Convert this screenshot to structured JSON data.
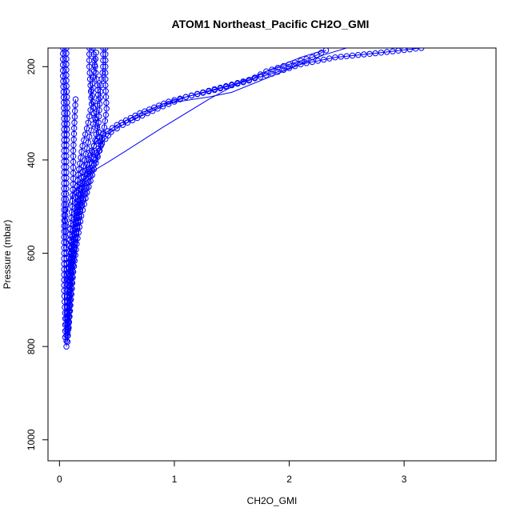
{
  "chart_data": {
    "type": "scatter",
    "title": "ATOM1 Northeast_Pacific CH2O_GMI",
    "xlabel": "CH2O_GMI",
    "ylabel": "Pressure (mbar)",
    "xlim": [
      -0.1,
      3.8
    ],
    "ylim": [
      1045,
      160
    ],
    "y_reversed": true,
    "x_ticks": [
      0,
      1,
      2,
      3
    ],
    "x_tick_labels": [
      "0",
      "1",
      "2",
      "3"
    ],
    "y_ticks": [
      200,
      400,
      600,
      800,
      1000
    ],
    "y_tick_labels": [
      "200",
      "400",
      "600",
      "800",
      "1000"
    ],
    "grid": false,
    "legend": "none",
    "color": "#0000ff",
    "series": [
      {
        "style": "line-markers",
        "points": [
          [
            0.03,
            160
          ],
          [
            0.03,
            220
          ],
          [
            0.04,
            300
          ],
          [
            0.04,
            380
          ],
          [
            0.04,
            450
          ],
          [
            0.04,
            530
          ],
          [
            0.04,
            600
          ],
          [
            0.04,
            680
          ],
          [
            0.05,
            740
          ],
          [
            0.05,
            780
          ]
        ]
      },
      {
        "style": "line-markers",
        "points": [
          [
            0.06,
            160
          ],
          [
            0.06,
            230
          ],
          [
            0.07,
            300
          ],
          [
            0.06,
            380
          ],
          [
            0.06,
            450
          ],
          [
            0.05,
            530
          ],
          [
            0.06,
            600
          ],
          [
            0.07,
            680
          ],
          [
            0.07,
            740
          ],
          [
            0.07,
            790
          ]
        ]
      },
      {
        "style": "line-markers",
        "points": [
          [
            0.14,
            270
          ],
          [
            0.13,
            320
          ],
          [
            0.12,
            380
          ],
          [
            0.12,
            440
          ],
          [
            0.11,
            500
          ],
          [
            0.09,
            560
          ],
          [
            0.08,
            620
          ],
          [
            0.07,
            680
          ],
          [
            0.06,
            740
          ],
          [
            0.06,
            800
          ]
        ]
      },
      {
        "style": "line-markers",
        "points": [
          [
            0.26,
            160
          ],
          [
            0.26,
            200
          ],
          [
            0.27,
            240
          ],
          [
            0.28,
            280
          ],
          [
            0.25,
            320
          ],
          [
            0.2,
            370
          ],
          [
            0.17,
            420
          ],
          [
            0.14,
            480
          ],
          [
            0.12,
            540
          ],
          [
            0.1,
            600
          ],
          [
            0.09,
            660
          ],
          [
            0.08,
            720
          ],
          [
            0.07,
            770
          ]
        ]
      },
      {
        "style": "line-markers",
        "points": [
          [
            0.29,
            160
          ],
          [
            0.31,
            200
          ],
          [
            0.33,
            240
          ],
          [
            0.34,
            270
          ],
          [
            0.31,
            310
          ],
          [
            0.26,
            350
          ],
          [
            0.22,
            400
          ],
          [
            0.18,
            450
          ],
          [
            0.15,
            510
          ],
          [
            0.12,
            570
          ],
          [
            0.1,
            630
          ],
          [
            0.09,
            690
          ],
          [
            0.08,
            750
          ],
          [
            0.07,
            790
          ]
        ]
      },
      {
        "style": "line-markers",
        "points": [
          [
            0.38,
            160
          ],
          [
            0.38,
            200
          ],
          [
            0.36,
            240
          ],
          [
            0.35,
            280
          ],
          [
            0.34,
            320
          ],
          [
            0.3,
            370
          ],
          [
            0.25,
            420
          ],
          [
            0.2,
            470
          ],
          [
            0.16,
            530
          ],
          [
            0.13,
            590
          ],
          [
            0.11,
            650
          ],
          [
            0.09,
            710
          ],
          [
            0.08,
            760
          ]
        ]
      },
      {
        "style": "line-markers",
        "points": [
          [
            0.4,
            160
          ],
          [
            0.4,
            200
          ],
          [
            0.4,
            240
          ],
          [
            0.41,
            290
          ],
          [
            0.39,
            330
          ],
          [
            0.35,
            380
          ],
          [
            0.3,
            420
          ],
          [
            0.24,
            470
          ],
          [
            0.19,
            520
          ],
          [
            0.15,
            580
          ],
          [
            0.12,
            640
          ],
          [
            0.1,
            700
          ],
          [
            0.08,
            760
          ]
        ]
      },
      {
        "style": "line-markers",
        "points": [
          [
            0.32,
            170
          ],
          [
            0.3,
            210
          ],
          [
            0.28,
            250
          ],
          [
            0.3,
            300
          ],
          [
            0.34,
            340
          ],
          [
            0.36,
            370
          ],
          [
            0.3,
            410
          ],
          [
            0.24,
            460
          ],
          [
            0.18,
            510
          ],
          [
            0.14,
            570
          ],
          [
            0.11,
            630
          ],
          [
            0.09,
            690
          ]
        ]
      },
      {
        "style": "line-markers",
        "points": [
          [
            3.15,
            160
          ],
          [
            2.8,
            170
          ],
          [
            2.4,
            180
          ],
          [
            2.1,
            195
          ],
          [
            1.85,
            215
          ],
          [
            1.55,
            235
          ],
          [
            1.25,
            255
          ],
          [
            0.95,
            275
          ],
          [
            0.7,
            300
          ],
          [
            0.5,
            325
          ],
          [
            0.38,
            345
          ],
          [
            0.32,
            360
          ],
          [
            0.28,
            380
          ],
          [
            0.24,
            410
          ],
          [
            0.2,
            450
          ],
          [
            0.16,
            500
          ],
          [
            0.13,
            560
          ],
          [
            0.11,
            620
          ]
        ]
      },
      {
        "style": "line-markers",
        "points": [
          [
            2.32,
            165
          ],
          [
            2.2,
            180
          ],
          [
            2.0,
            195
          ],
          [
            1.8,
            210
          ],
          [
            1.65,
            230
          ],
          [
            1.35,
            250
          ],
          [
            1.1,
            265
          ],
          [
            0.9,
            285
          ],
          [
            0.72,
            305
          ],
          [
            0.55,
            325
          ],
          [
            0.45,
            340
          ],
          [
            0.4,
            355
          ],
          [
            0.34,
            375
          ],
          [
            0.3,
            395
          ],
          [
            0.26,
            420
          ],
          [
            0.2,
            460
          ],
          [
            0.16,
            510
          ],
          [
            0.12,
            570
          ],
          [
            0.1,
            630
          ]
        ]
      },
      {
        "style": "line",
        "points": [
          [
            0.04,
            530
          ],
          [
            0.1,
            480
          ],
          [
            0.25,
            430
          ],
          [
            0.42,
            405
          ],
          [
            0.55,
            385
          ],
          [
            0.9,
            330
          ],
          [
            1.3,
            270
          ],
          [
            1.6,
            230
          ],
          [
            1.9,
            200
          ],
          [
            2.1,
            180
          ],
          [
            2.3,
            165
          ]
        ]
      },
      {
        "style": "line",
        "points": [
          [
            0.9,
            280
          ],
          [
            1.3,
            265
          ],
          [
            1.5,
            255
          ],
          [
            1.8,
            225
          ],
          [
            2.1,
            195
          ],
          [
            2.3,
            175
          ],
          [
            2.5,
            160
          ]
        ]
      }
    ]
  }
}
